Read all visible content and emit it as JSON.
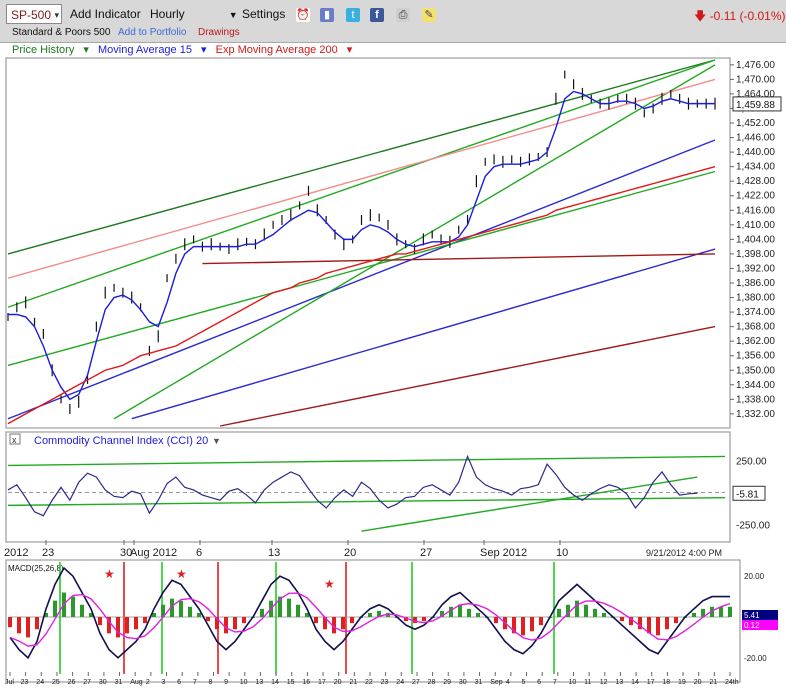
{
  "toolbar": {
    "symbol": "SP-500",
    "add_indicator": "Add Indicator",
    "interval": "Hourly",
    "settings": "Settings",
    "change": "-0.11 (-0.01%)",
    "subtitle": "Standard & Poors 500",
    "add_portfolio": "Add to Portfolio",
    "drawings": "Drawings"
  },
  "legend": {
    "price_history": "Price History",
    "ma15": "Moving Average 15",
    "ema200": "Exp Moving Average 200"
  },
  "colors": {
    "price": "#111111",
    "ma15": "#1c1ce0",
    "ema200": "#e01818",
    "green_line": "#22aa22",
    "dark_green": "#1e7a1e",
    "blue_line": "#2a2ad0",
    "pink_line": "#f28c8c",
    "dark_red": "#a01818",
    "macd_pos": "#2a9a2a",
    "macd_neg": "#e02020"
  },
  "chart_data": [
    {
      "type": "line",
      "title": "SP-500",
      "yticks": [
        "1,476.00",
        "1,470.00",
        "1,464.00",
        "1,458.00",
        "1,452.00",
        "1,446.00",
        "1,440.00",
        "1,434.00",
        "1,428.00",
        "1,422.00",
        "1,416.00",
        "1,410.00",
        "1,404.00",
        "1,398.00",
        "1,392.00",
        "1,386.00",
        "1,380.00",
        "1,374.00",
        "1,368.00",
        "1,362.00",
        "1,356.00",
        "1,350.00",
        "1,344.00",
        "1,338.00",
        "1,332.00"
      ],
      "ylim": [
        1327,
        1478
      ],
      "last_price": "1,459.88",
      "x": [
        0,
        1,
        2,
        3,
        4,
        5,
        6,
        7,
        8,
        9,
        10,
        11,
        12,
        13,
        14,
        15,
        16,
        17,
        18,
        19,
        20,
        21,
        22,
        23,
        24,
        25,
        26,
        27,
        28,
        29,
        30,
        31,
        32,
        33,
        34,
        35,
        36,
        37,
        38,
        39,
        40,
        41,
        42,
        43,
        44,
        45,
        46,
        47,
        48,
        49,
        50,
        51,
        52,
        53,
        54,
        55,
        56,
        57,
        58,
        59,
        60,
        61,
        62,
        63,
        64,
        65,
        66,
        67,
        68,
        69,
        70,
        71,
        72,
        73,
        74,
        75,
        76,
        77,
        78,
        79,
        80
      ],
      "series": [
        {
          "name": "Price History",
          "values": [
            1372,
            1376,
            1378,
            1370,
            1365,
            1350,
            1338,
            1334,
            1337,
            1346,
            1368,
            1382,
            1384,
            1382,
            1380,
            1376,
            1358,
            1364,
            1388,
            1396,
            1402,
            1404,
            1401,
            1402,
            1401,
            1400,
            1402,
            1403,
            1402,
            1406,
            1410,
            1412,
            1414,
            1418,
            1424,
            1416,
            1412,
            1406,
            1402,
            1404,
            1412,
            1414,
            1413,
            1410,
            1404,
            1402,
            1400,
            1404,
            1406,
            1404,
            1403,
            1408,
            1412,
            1428,
            1436,
            1437,
            1436,
            1437,
            1436,
            1437,
            1438,
            1440,
            1462,
            1472,
            1468,
            1464,
            1462,
            1460,
            1460,
            1462,
            1462,
            1460,
            1456,
            1458,
            1462,
            1464,
            1462,
            1460,
            1460,
            1460,
            1460
          ]
        },
        {
          "name": "Moving Average 15",
          "values": [
            1373,
            1373,
            1372,
            1368,
            1360,
            1350,
            1343,
            1338,
            1340,
            1348,
            1362,
            1375,
            1380,
            1381,
            1379,
            1375,
            1370,
            1368,
            1378,
            1390,
            1398,
            1401,
            1401,
            1401,
            1401,
            1401,
            1401,
            1402,
            1402,
            1404,
            1406,
            1409,
            1412,
            1414,
            1416,
            1415,
            1411,
            1407,
            1404,
            1404,
            1408,
            1410,
            1409,
            1407,
            1404,
            1402,
            1401,
            1402,
            1403,
            1403,
            1403,
            1405,
            1410,
            1420,
            1430,
            1434,
            1435,
            1435,
            1435,
            1436,
            1437,
            1440,
            1450,
            1462,
            1465,
            1464,
            1462,
            1460,
            1460,
            1461,
            1461,
            1460,
            1458,
            1459,
            1461,
            1462,
            1461,
            1460,
            1460,
            1460,
            1460
          ]
        },
        {
          "name": "Exp Moving Average 200",
          "values": [
            1328,
            1330,
            1332,
            1334,
            1336,
            1338,
            1340,
            1342,
            1344,
            1346,
            1348,
            1350,
            1351,
            1352,
            1354,
            1356,
            1357,
            1358,
            1359,
            1360,
            1362,
            1364,
            1366,
            1368,
            1370,
            1372,
            1374,
            1376,
            1378,
            1380,
            1382,
            1383,
            1384,
            1386,
            1387,
            1388,
            1390,
            1391,
            1392,
            1393,
            1394,
            1395,
            1396,
            1397,
            1398,
            1398,
            1399,
            1400,
            1401,
            1402,
            1403,
            1404,
            1405,
            1406,
            1407,
            1408,
            1409,
            1410,
            1411,
            1412,
            1413,
            1414,
            1416,
            1417,
            1418,
            1419,
            1420,
            1421,
            1422,
            1423,
            1424,
            1425,
            1426,
            1427,
            1428,
            1429,
            1430,
            1431,
            1432,
            1433,
            1434
          ]
        }
      ]
    },
    {
      "type": "line",
      "title": "Commodity Channel Index (CCI) 20",
      "yticks": [
        "250.00",
        "-250.00"
      ],
      "last_value": "-5.81",
      "ylim": [
        -330,
        330
      ],
      "series": [
        {
          "name": "Commodity Channel Index (CCI) 20",
          "values": [
            20,
            60,
            -40,
            -150,
            -180,
            -60,
            40,
            -60,
            80,
            150,
            120,
            20,
            -30,
            -40,
            10,
            -10,
            -160,
            -60,
            70,
            120,
            40,
            20,
            -20,
            -40,
            -60,
            10,
            30,
            -20,
            -80,
            20,
            80,
            120,
            160,
            130,
            30,
            -60,
            -120,
            -40,
            20,
            -30,
            80,
            30,
            -60,
            -120,
            -90,
            -40,
            -30,
            40,
            60,
            20,
            -20,
            80,
            280,
            120,
            60,
            30,
            10,
            -20,
            30,
            40,
            60,
            220,
            140,
            40,
            -20,
            -60,
            -10,
            30,
            60,
            40,
            -10,
            -120,
            -40,
            80,
            160,
            60,
            -20,
            -10,
            -5
          ]
        }
      ]
    },
    {
      "type": "bar",
      "title": "MACD(25,26,8)",
      "yticks": [
        "20.00",
        "-20.00"
      ],
      "readouts": [
        "5.41",
        "0.12"
      ],
      "series": [
        {
          "name": "MACD(25,26,8)",
          "values": [
            -5,
            -8,
            -10,
            -6,
            2,
            8,
            12,
            10,
            6,
            2,
            -4,
            -8,
            -10,
            -8,
            -6,
            -3,
            2,
            6,
            9,
            8,
            5,
            2,
            -2,
            -6,
            -8,
            -6,
            -3,
            0,
            4,
            8,
            10,
            9,
            6,
            2,
            -3,
            -6,
            -8,
            -6,
            -3,
            0,
            2,
            3,
            2,
            0,
            -2,
            -3,
            -2,
            0,
            3,
            5,
            6,
            4,
            2,
            0,
            -3,
            -6,
            -8,
            -9,
            -7,
            -4,
            0,
            4,
            6,
            8,
            6,
            4,
            2,
            0,
            -2,
            -4,
            -6,
            -8,
            -9,
            -6,
            -3,
            0,
            2,
            4,
            5,
            5,
            5
          ]
        }
      ]
    }
  ],
  "time_axis": {
    "labels": [
      "2012",
      "23",
      "30",
      "Aug 2012",
      "6",
      "13",
      "20",
      "27",
      "Sep 2012",
      "10",
      "9/21/2012 4:00 PM"
    ]
  },
  "macd_axis": {
    "labels": [
      "Jul",
      "23",
      "24",
      "25",
      "26",
      "27",
      "30",
      "31",
      "Aug",
      "2",
      "3",
      "6",
      "7",
      "8",
      "9",
      "10",
      "13",
      "14",
      "15",
      "16",
      "17",
      "20",
      "21",
      "22",
      "23",
      "24",
      "27",
      "28",
      "29",
      "30",
      "31",
      "Sep",
      "4",
      "5",
      "6",
      "7",
      "10",
      "11",
      "12",
      "13",
      "14",
      "17",
      "18",
      "19",
      "20",
      "21",
      "24th"
    ]
  }
}
